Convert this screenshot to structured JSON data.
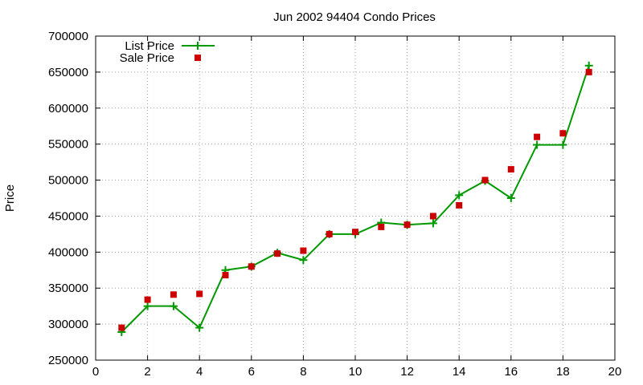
{
  "chart_data": {
    "type": "line",
    "title": "Jun 2002 94404 Condo Prices",
    "xlabel": "",
    "ylabel": "Price",
    "xlim": [
      0,
      20
    ],
    "ylim": [
      250000,
      700000
    ],
    "xticks": [
      0,
      2,
      4,
      6,
      8,
      10,
      12,
      14,
      16,
      18,
      20
    ],
    "yticks": [
      250000,
      300000,
      350000,
      400000,
      450000,
      500000,
      550000,
      600000,
      650000,
      700000
    ],
    "grid": true,
    "legend_position": "top-left",
    "series": [
      {
        "name": "List Price",
        "style": "line-plus",
        "color": "#009900",
        "x": [
          1,
          2,
          3,
          4,
          5,
          6,
          7,
          8,
          9,
          10,
          11,
          12,
          13,
          14,
          15,
          16,
          17,
          18,
          19
        ],
        "values": [
          289000,
          325000,
          325000,
          295000,
          375000,
          380000,
          399000,
          389000,
          425000,
          425000,
          441000,
          438000,
          440000,
          479000,
          499000,
          475000,
          549000,
          549000,
          659000
        ]
      },
      {
        "name": "Sale Price",
        "style": "square",
        "color": "#cc0000",
        "x": [
          1,
          2,
          3,
          4,
          5,
          6,
          7,
          8,
          9,
          10,
          11,
          12,
          13,
          14,
          15,
          16,
          17,
          18,
          19
        ],
        "values": [
          295000,
          334000,
          341000,
          342000,
          368000,
          380000,
          398000,
          402000,
          425000,
          428000,
          435000,
          438000,
          450000,
          465000,
          500000,
          515000,
          560000,
          565000,
          650000
        ]
      }
    ]
  }
}
